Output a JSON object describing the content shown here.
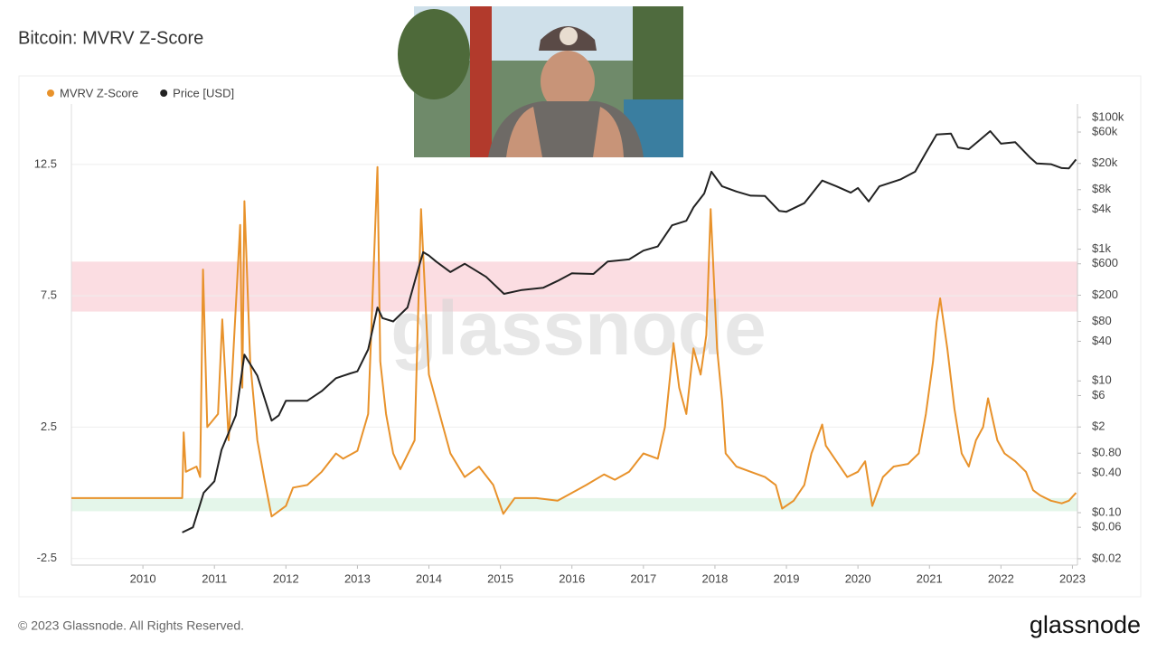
{
  "chart_data": {
    "type": "line",
    "title": "Bitcoin: MVRV Z-Score",
    "copyright": "© 2023 Glassnode. All Rights Reserved.",
    "watermark": "glassnode",
    "logo": "glassnode",
    "xlim": [
      2009,
      2023.07
    ],
    "xticks": [
      2010,
      2011,
      2012,
      2013,
      2014,
      2015,
      2016,
      2017,
      2018,
      2019,
      2020,
      2021,
      2022,
      2023
    ],
    "ylim": [
      -2.75,
      14.8
    ],
    "yticks": [
      12.5,
      7.5,
      2.5,
      -2.5
    ],
    "y2lim": [
      0.016,
      160000
    ],
    "y2log": true,
    "y2ticks": [
      {
        "value": 100000,
        "label": "$100k"
      },
      {
        "value": 60000,
        "label": "$60k"
      },
      {
        "value": 20000,
        "label": "$20k"
      },
      {
        "value": 8000,
        "label": "$8k"
      },
      {
        "value": 4000,
        "label": "$4k"
      },
      {
        "value": 1000,
        "label": "$1k"
      },
      {
        "value": 600,
        "label": "$600"
      },
      {
        "value": 200,
        "label": "$200"
      },
      {
        "value": 80,
        "label": "$80"
      },
      {
        "value": 40,
        "label": "$40"
      },
      {
        "value": 10,
        "label": "$10"
      },
      {
        "value": 6,
        "label": "$6"
      },
      {
        "value": 2,
        "label": "$2"
      },
      {
        "value": 0.8,
        "label": "$0.80"
      },
      {
        "value": 0.4,
        "label": "$0.40"
      },
      {
        "value": 0.1,
        "label": "$0.10"
      },
      {
        "value": 0.06,
        "label": "$0.06"
      },
      {
        "value": 0.02,
        "label": "$0.02"
      }
    ],
    "grid": true,
    "legend": "top-left",
    "bands": [
      {
        "from": 6.9,
        "to": 8.8,
        "color": "#fbdde2"
      },
      {
        "from": -0.7,
        "to": -0.2,
        "color": "#e4f6ea"
      }
    ],
    "series": [
      {
        "name": "MVRV Z-Score",
        "color": "#e8922b",
        "axis": "y",
        "x": [
          2009.0,
          2010.55,
          2010.57,
          2010.6,
          2010.75,
          2010.8,
          2010.84,
          2010.9,
          2011.05,
          2011.11,
          2011.2,
          2011.36,
          2011.39,
          2011.42,
          2011.5,
          2011.6,
          2011.7,
          2011.8,
          2012.0,
          2012.1,
          2012.3,
          2012.5,
          2012.7,
          2012.8,
          2013.0,
          2013.15,
          2013.28,
          2013.32,
          2013.4,
          2013.5,
          2013.6,
          2013.8,
          2013.89,
          2014.0,
          2014.1,
          2014.2,
          2014.3,
          2014.5,
          2014.7,
          2014.9,
          2015.04,
          2015.2,
          2015.5,
          2015.8,
          2016.0,
          2016.2,
          2016.45,
          2016.6,
          2016.8,
          2017.0,
          2017.2,
          2017.3,
          2017.42,
          2017.5,
          2017.6,
          2017.7,
          2017.8,
          2017.88,
          2017.94,
          2018.03,
          2018.1,
          2018.15,
          2018.3,
          2018.5,
          2018.7,
          2018.85,
          2018.94,
          2019.1,
          2019.25,
          2019.35,
          2019.5,
          2019.55,
          2019.7,
          2019.85,
          2020.0,
          2020.1,
          2020.2,
          2020.35,
          2020.5,
          2020.7,
          2020.85,
          2020.95,
          2021.05,
          2021.1,
          2021.15,
          2021.25,
          2021.35,
          2021.45,
          2021.55,
          2021.65,
          2021.75,
          2021.82,
          2021.95,
          2022.05,
          2022.2,
          2022.35,
          2022.45,
          2022.55,
          2022.7,
          2022.85,
          2022.95,
          2023.05
        ],
        "values": [
          -0.2,
          -0.2,
          2.3,
          0.8,
          1.0,
          0.6,
          8.5,
          2.5,
          3.0,
          6.6,
          2.0,
          10.2,
          4.0,
          11.1,
          5.0,
          2.0,
          0.5,
          -0.9,
          -0.5,
          0.2,
          0.3,
          0.8,
          1.5,
          1.3,
          1.6,
          3.0,
          12.4,
          5.0,
          3.0,
          1.5,
          0.9,
          2.0,
          10.8,
          4.5,
          3.5,
          2.5,
          1.5,
          0.6,
          1.0,
          0.3,
          -0.8,
          -0.2,
          -0.2,
          -0.3,
          0.0,
          0.3,
          0.7,
          0.5,
          0.8,
          1.5,
          1.3,
          2.5,
          5.7,
          4.0,
          3.0,
          5.5,
          4.5,
          6.0,
          10.8,
          5.5,
          3.5,
          1.5,
          1.0,
          0.8,
          0.6,
          0.3,
          -0.6,
          -0.3,
          0.3,
          1.5,
          2.6,
          1.8,
          1.2,
          0.6,
          0.8,
          1.2,
          -0.5,
          0.6,
          1.0,
          1.1,
          1.5,
          3.0,
          5.0,
          6.5,
          7.4,
          5.5,
          3.2,
          1.5,
          1.0,
          2.0,
          2.5,
          3.6,
          2.0,
          1.5,
          1.2,
          0.8,
          0.1,
          -0.1,
          -0.3,
          -0.4,
          -0.3,
          0.0
        ]
      },
      {
        "name": "Price [USD]",
        "color": "#222222",
        "axis": "y2",
        "x": [
          2010.55,
          2010.7,
          2010.85,
          2011.0,
          2011.1,
          2011.3,
          2011.42,
          2011.6,
          2011.8,
          2011.9,
          2012.0,
          2012.3,
          2012.5,
          2012.7,
          2012.9,
          2013.0,
          2013.15,
          2013.28,
          2013.35,
          2013.5,
          2013.7,
          2013.85,
          2013.92,
          2014.0,
          2014.1,
          2014.3,
          2014.5,
          2014.8,
          2015.05,
          2015.3,
          2015.6,
          2015.8,
          2016.0,
          2016.3,
          2016.5,
          2016.8,
          2017.0,
          2017.2,
          2017.4,
          2017.6,
          2017.7,
          2017.85,
          2017.95,
          2018.1,
          2018.3,
          2018.5,
          2018.7,
          2018.9,
          2019.0,
          2019.25,
          2019.5,
          2019.7,
          2019.9,
          2020.0,
          2020.15,
          2020.3,
          2020.6,
          2020.8,
          2020.95,
          2021.1,
          2021.3,
          2021.4,
          2021.55,
          2021.7,
          2021.85,
          2022.0,
          2022.2,
          2022.4,
          2022.5,
          2022.7,
          2022.85,
          2022.95,
          2023.05
        ],
        "values": [
          0.05,
          0.06,
          0.2,
          0.3,
          0.9,
          3,
          25,
          12,
          2.5,
          3,
          5,
          5,
          7,
          11,
          13,
          14,
          30,
          130,
          90,
          80,
          130,
          500,
          900,
          800,
          650,
          450,
          600,
          380,
          210,
          240,
          260,
          330,
          430,
          420,
          650,
          700,
          950,
          1100,
          2300,
          2700,
          4300,
          7000,
          15000,
          9000,
          7500,
          6500,
          6400,
          3800,
          3700,
          5000,
          11000,
          9000,
          7200,
          8500,
          5300,
          9000,
          11500,
          15000,
          29000,
          55000,
          57000,
          35000,
          33000,
          45000,
          62000,
          40000,
          42000,
          25000,
          20000,
          19500,
          17000,
          16800,
          23000
        ]
      }
    ]
  }
}
